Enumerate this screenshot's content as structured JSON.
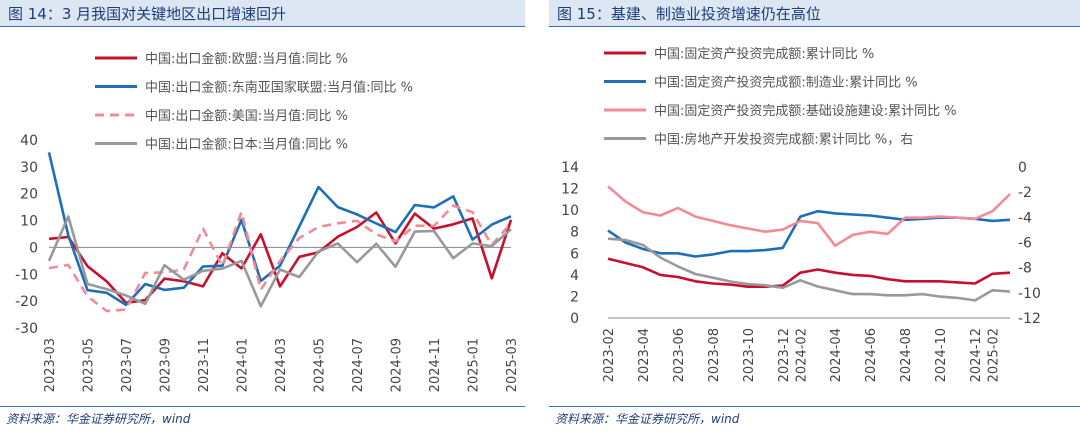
{
  "colors": {
    "red": "#c8102e",
    "blue": "#1f6fb7",
    "pink": "#f28b95",
    "gray": "#999999",
    "title_bg": "#dde7f3",
    "title_text": "#1d3e78"
  },
  "left": {
    "title": "图 14：3 月我国对关键地区出口增速回升",
    "source": "资料来源：华金证券研究所，wind"
  },
  "right": {
    "title": "图 15：基建、制造业投资增速仍在高位",
    "source": "资料来源：华金证券研究所，wind"
  },
  "chart_data": [
    {
      "type": "line",
      "x": [
        "2023-03",
        "2023-04",
        "2023-05",
        "2023-06",
        "2023-07",
        "2023-08",
        "2023-09",
        "2023-10",
        "2023-11",
        "2023-12",
        "2024-01",
        "2024-02",
        "2024-03",
        "2024-04",
        "2024-05",
        "2024-06",
        "2024-07",
        "2024-08",
        "2024-09",
        "2024-10",
        "2024-11",
        "2024-12",
        "2025-01",
        "2025-02",
        "2025-03"
      ],
      "x_ticks": [
        "2023-03",
        "2023-05",
        "2023-07",
        "2023-09",
        "2023-11",
        "2024-01",
        "2024-03",
        "2024-05",
        "2024-07",
        "2024-09",
        "2024-11",
        "2025-01",
        "2025-03"
      ],
      "ylim": [
        -30,
        40
      ],
      "yticks": [
        40,
        30,
        20,
        10,
        0,
        -10,
        -20,
        -30
      ],
      "legend_position": "top-left",
      "series": [
        {
          "name": "中国:出口金额:欧盟:当月值:同比 %",
          "color": "#c8102e",
          "dash": "solid",
          "values": [
            3.2,
            3.9,
            -7.0,
            -12.7,
            -20.6,
            -19.6,
            -11.6,
            -12.6,
            -14.5,
            -2.2,
            -7.8,
            4.9,
            -14.5,
            -3.5,
            -1.8,
            4.0,
            7.6,
            13.0,
            1.5,
            12.6,
            7.0,
            8.6,
            10.8,
            -11.5,
            10.3
          ]
        },
        {
          "name": "中国:出口金额:东南亚国家联盟:当月值:同比 %",
          "color": "#1f6fb7",
          "dash": "solid",
          "values": [
            35.4,
            4.5,
            -15.9,
            -16.9,
            -21.4,
            -13.6,
            -15.8,
            -15.0,
            -7.1,
            -6.8,
            10.3,
            -12.5,
            -6.8,
            7.8,
            22.5,
            15.0,
            12.3,
            8.9,
            5.7,
            15.8,
            14.9,
            19.0,
            2.9,
            8.5,
            11.6
          ]
        },
        {
          "name": "中国:出口金额:美国:当月值:同比 %",
          "color": "#f28b95",
          "dash": "dash",
          "values": [
            -7.7,
            -6.5,
            -18.2,
            -23.7,
            -23.1,
            -9.5,
            -9.3,
            -8.2,
            7.0,
            -6.9,
            13.2,
            -15.7,
            -5.1,
            3.5,
            7.6,
            9.0,
            9.9,
            4.9,
            2.2,
            8.1,
            8.0,
            15.6,
            13.1,
            0.9,
            9.1
          ]
        },
        {
          "name": "中国:出口金额:日本:当月值:同比 %",
          "color": "#999999",
          "dash": "solid",
          "values": [
            -5.0,
            11.5,
            -13.6,
            -15.5,
            -17.9,
            -21.0,
            -6.6,
            -12.0,
            -8.7,
            -7.9,
            -5.0,
            -21.9,
            -8.2,
            -11.0,
            -1.5,
            1.5,
            -5.5,
            1.4,
            -7.2,
            5.9,
            6.1,
            -4.0,
            1.5,
            0.5,
            6.8
          ]
        }
      ]
    },
    {
      "type": "line",
      "x": [
        "2023-02",
        "2023-03",
        "2023-04",
        "2023-05",
        "2023-06",
        "2023-07",
        "2023-08",
        "2023-09",
        "2023-10",
        "2023-11",
        "2023-12",
        "2024-02",
        "2024-03",
        "2024-04",
        "2024-05",
        "2024-06",
        "2024-07",
        "2024-08",
        "2024-09",
        "2024-10",
        "2024-11",
        "2024-12",
        "2025-02",
        "2025-03"
      ],
      "x_ticks": [
        "2023-02",
        "2023-04",
        "2023-06",
        "2023-08",
        "2023-10",
        "2023-12",
        "2024-02",
        "2024-04",
        "2024-06",
        "2024-08",
        "2024-10",
        "2024-12",
        "2025-02"
      ],
      "ylim": [
        0,
        14
      ],
      "yticks": [
        14,
        12,
        10,
        8,
        6,
        4,
        2,
        0
      ],
      "y2lim": [
        -12,
        0
      ],
      "y2ticks": [
        0,
        -2,
        -4,
        -6,
        -8,
        -10,
        -12
      ],
      "legend_position": "top-left",
      "series": [
        {
          "name": "中国:固定资产投资完成额:累计同比 %",
          "color": "#c8102e",
          "axis": "left",
          "values": [
            5.5,
            5.1,
            4.7,
            4.0,
            3.8,
            3.4,
            3.2,
            3.1,
            2.9,
            2.9,
            3.0,
            4.2,
            4.5,
            4.2,
            4.0,
            3.9,
            3.6,
            3.4,
            3.4,
            3.4,
            3.3,
            3.2,
            4.1,
            4.2
          ]
        },
        {
          "name": "中国:固定资产投资完成额:制造业:累计同比 %",
          "color": "#1f6fb7",
          "axis": "left",
          "values": [
            8.1,
            7.0,
            6.4,
            6.0,
            6.0,
            5.7,
            5.9,
            6.2,
            6.2,
            6.3,
            6.5,
            9.4,
            9.9,
            9.7,
            9.6,
            9.5,
            9.3,
            9.1,
            9.2,
            9.3,
            9.3,
            9.2,
            9.0,
            9.1
          ]
        },
        {
          "name": "中国:固定资产投资完成额:基础设施建设:累计同比 %",
          "color": "#f28b95",
          "axis": "left",
          "values": [
            12.2,
            10.8,
            9.8,
            9.5,
            10.2,
            9.4,
            9.0,
            8.6,
            8.3,
            8.0,
            8.2,
            9.0,
            8.8,
            6.7,
            7.7,
            8.0,
            7.8,
            9.3,
            9.3,
            9.4,
            9.3,
            9.2,
            9.9,
            11.5
          ]
        },
        {
          "name": "中国:房地产开发投资完成额:累计同比 %，右",
          "color": "#999999",
          "axis": "right",
          "values": [
            -5.7,
            -5.8,
            -6.2,
            -7.2,
            -7.9,
            -8.5,
            -8.8,
            -9.1,
            -9.3,
            -9.4,
            -9.6,
            -9.0,
            -9.5,
            -9.8,
            -10.1,
            -10.1,
            -10.2,
            -10.2,
            -10.1,
            -10.3,
            -10.4,
            -10.6,
            -9.8,
            -9.9
          ]
        }
      ]
    }
  ]
}
